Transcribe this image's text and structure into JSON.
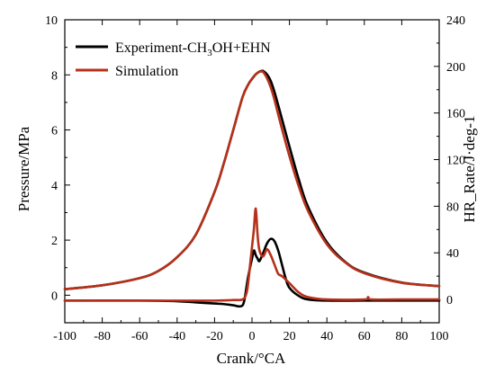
{
  "chart_data": {
    "type": "line",
    "xlabel": "Crank/°CA",
    "ylabel_left": "Pressure/MPa",
    "ylabel_right": "HR_Rate/J·deg-1",
    "xlim": [
      -100,
      100
    ],
    "ylim_left": [
      -1,
      10
    ],
    "ylim_right": [
      -20,
      240
    ],
    "x_ticks": [
      -100,
      -80,
      -60,
      -40,
      -20,
      0,
      20,
      40,
      60,
      80,
      100
    ],
    "y_left_ticks": [
      0,
      2,
      4,
      6,
      8,
      10
    ],
    "y_right_ticks": [
      0,
      40,
      80,
      120,
      160,
      200,
      240
    ],
    "grid": false,
    "legend_position": "top-left",
    "legend": [
      {
        "label": "Experiment-CH3OH+EHN",
        "display": [
          "Experiment-CH",
          "3",
          "OH+EHN"
        ],
        "color": "#000000"
      },
      {
        "label": "Simulation",
        "color": "#b5311a"
      }
    ],
    "series": [
      {
        "name": "Experiment-CH3OH+EHN",
        "kind": "pressure",
        "axis": "left",
        "color": "#000000",
        "x": [
          -100,
          -80,
          -60,
          -50,
          -40,
          -30,
          -20,
          -15,
          -10,
          -5,
          -2,
          0,
          2,
          4,
          5,
          6,
          8,
          10,
          12,
          15,
          20,
          25,
          30,
          40,
          50,
          60,
          80,
          100
        ],
        "y": [
          0.22,
          0.36,
          0.62,
          0.88,
          1.38,
          2.2,
          3.75,
          4.8,
          6.0,
          7.2,
          7.65,
          7.85,
          8.02,
          8.12,
          8.14,
          8.14,
          8.02,
          7.78,
          7.38,
          6.65,
          5.4,
          4.2,
          3.2,
          1.92,
          1.2,
          0.82,
          0.46,
          0.33
        ]
      },
      {
        "name": "Simulation",
        "kind": "pressure",
        "axis": "left",
        "color": "#b5311a",
        "x": [
          -100,
          -80,
          -60,
          -50,
          -40,
          -30,
          -20,
          -15,
          -10,
          -5,
          -2,
          0,
          2,
          4,
          5,
          6,
          8,
          10,
          12,
          15,
          20,
          25,
          30,
          40,
          50,
          60,
          80,
          100
        ],
        "y": [
          0.22,
          0.36,
          0.62,
          0.88,
          1.38,
          2.2,
          3.75,
          4.8,
          6.0,
          7.2,
          7.65,
          7.86,
          8.02,
          8.12,
          8.12,
          8.1,
          7.88,
          7.55,
          7.1,
          6.3,
          5.05,
          3.95,
          3.05,
          1.85,
          1.18,
          0.8,
          0.45,
          0.33
        ]
      },
      {
        "name": "Experiment-CH3OH+EHN",
        "kind": "heat_release_rate",
        "axis": "right",
        "color": "#000000",
        "x": [
          -100,
          -60,
          -40,
          -30,
          -20,
          -15,
          -10,
          -7,
          -5,
          -4,
          -3,
          -2,
          0,
          1,
          2,
          3,
          4,
          6,
          8,
          10,
          12,
          14,
          16,
          18,
          20,
          25,
          30,
          40,
          60,
          80,
          100
        ],
        "y": [
          -1,
          -1,
          -1.5,
          -2.5,
          -3.5,
          -4,
          -5,
          -6,
          -5,
          0,
          10,
          20,
          35,
          42,
          38,
          35,
          33,
          40,
          48,
          52,
          50,
          42,
          30,
          18,
          10,
          3,
          0,
          -1,
          -1,
          -1,
          -1
        ]
      },
      {
        "name": "Simulation",
        "kind": "heat_release_rate",
        "axis": "right",
        "color": "#b5311a",
        "x": [
          -100,
          -40,
          -20,
          -10,
          -5,
          -3,
          -2,
          -1,
          0,
          1,
          2,
          3,
          4,
          6,
          8,
          10,
          12,
          14,
          16,
          20,
          25,
          30,
          40,
          60,
          62,
          64,
          80,
          100
        ],
        "y": [
          -1,
          -1,
          -1,
          -0.5,
          0,
          5,
          15,
          30,
          45,
          60,
          78,
          55,
          42,
          37,
          43,
          38,
          30,
          22,
          20,
          14,
          6,
          2,
          0,
          0,
          2,
          0,
          0,
          0
        ]
      }
    ]
  }
}
